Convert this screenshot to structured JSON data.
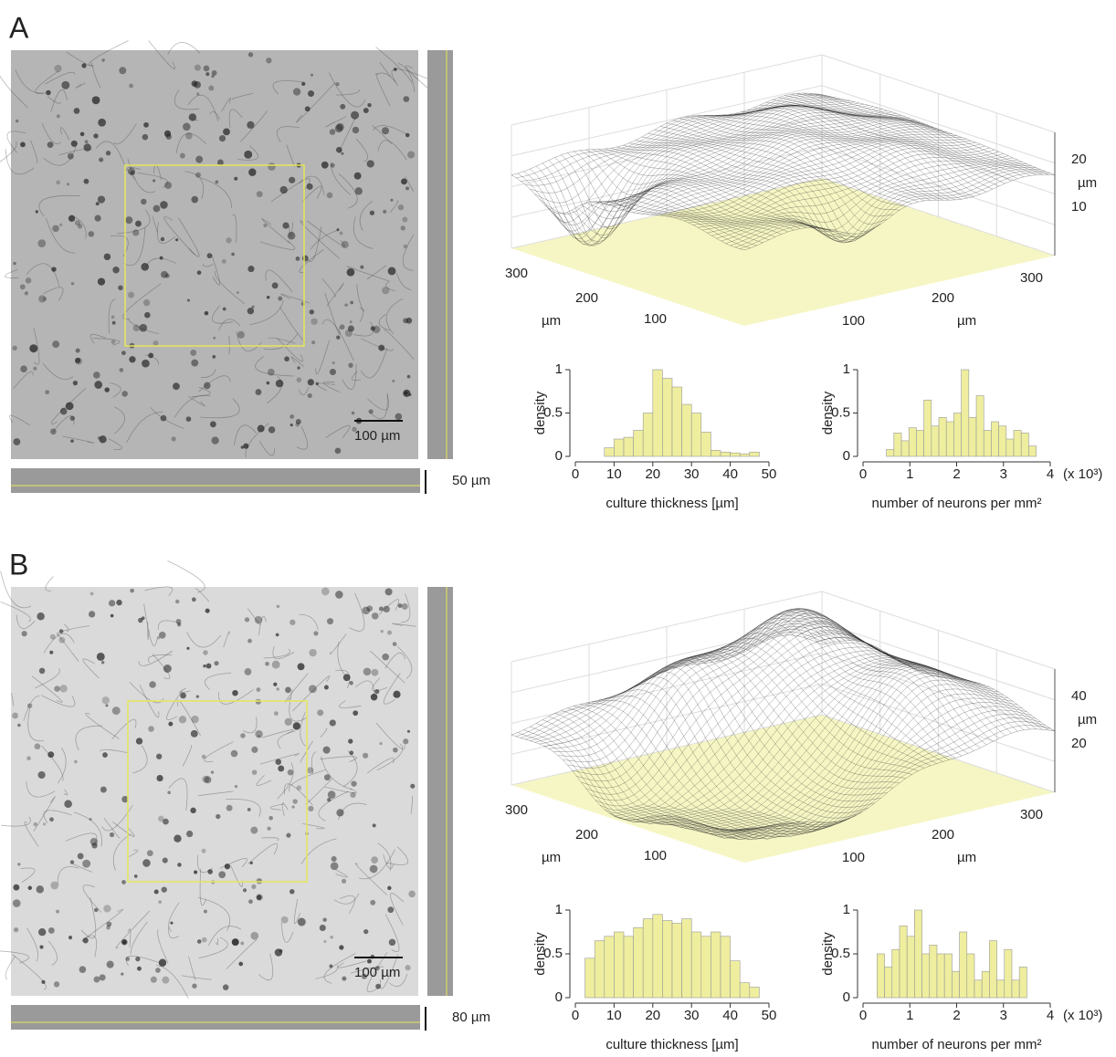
{
  "panels": [
    {
      "label": "A",
      "scale_bar": "100 µm",
      "z_scale_bar": "50 µm",
      "surface": {
        "left_ticks": [
          300,
          200,
          100
        ],
        "left_label": "µm",
        "right_ticks": [
          300,
          200,
          100
        ],
        "right_label": "µm",
        "z_ticks": [
          20,
          10
        ],
        "z_label": "µm"
      }
    },
    {
      "label": "B",
      "scale_bar": "100 µm",
      "z_scale_bar": "80 µm",
      "surface": {
        "left_ticks": [
          300,
          200,
          100
        ],
        "left_label": "µm",
        "right_ticks": [
          300,
          200,
          100
        ],
        "right_label": "µm",
        "z_ticks": [
          40,
          20
        ],
        "z_label": "µm"
      }
    }
  ],
  "chart_data": [
    {
      "type": "histogram",
      "xlabel": "culture thickness [µm]",
      "ylabel": "density",
      "color": "#eeee9e",
      "bins": [
        7.5,
        10,
        12.5,
        15,
        17.5,
        20,
        22.5,
        25,
        27.5,
        30,
        32.5,
        35,
        37.5,
        40,
        42.5,
        45,
        47.5
      ],
      "values": [
        0.1,
        0.2,
        0.22,
        0.3,
        0.5,
        1.0,
        0.9,
        0.8,
        0.6,
        0.5,
        0.28,
        0.07,
        0.05,
        0.04,
        0.03,
        0.05
      ],
      "xlim": [
        0,
        50
      ],
      "xticks": [
        0,
        10,
        20,
        30,
        40,
        50
      ],
      "ylim": [
        0,
        1
      ],
      "yticks": [
        0,
        0.5,
        1
      ]
    },
    {
      "type": "histogram",
      "xlabel": "number of neurons per mm²",
      "ylabel": "density",
      "x_unit": "(x 10³)",
      "color": "#eeee9e",
      "bins": [
        0.5,
        0.66,
        0.82,
        0.98,
        1.14,
        1.3,
        1.46,
        1.62,
        1.78,
        1.94,
        2.1,
        2.26,
        2.42,
        2.58,
        2.74,
        2.9,
        3.06,
        3.22,
        3.38,
        3.54,
        3.7
      ],
      "values": [
        0.08,
        0.27,
        0.18,
        0.33,
        0.3,
        0.65,
        0.35,
        0.45,
        0.4,
        0.5,
        1.0,
        0.45,
        0.7,
        0.3,
        0.4,
        0.35,
        0.2,
        0.3,
        0.27,
        0.12
      ],
      "xlim": [
        0,
        4
      ],
      "xticks": [
        0,
        1,
        2,
        3,
        4
      ],
      "ylim": [
        0,
        1
      ],
      "yticks": [
        0,
        0.5,
        1
      ]
    },
    {
      "type": "histogram",
      "xlabel": "culture thickness [µm]",
      "ylabel": "density",
      "color": "#eeee9e",
      "bins": [
        2.5,
        5,
        7.5,
        10,
        12.5,
        15,
        17.5,
        20,
        22.5,
        25,
        27.5,
        30,
        32.5,
        35,
        37.5,
        40,
        42.5,
        45,
        47.5
      ],
      "values": [
        0.45,
        0.65,
        0.7,
        0.75,
        0.7,
        0.8,
        0.9,
        0.95,
        0.88,
        0.85,
        0.9,
        0.75,
        0.7,
        0.75,
        0.7,
        0.42,
        0.17,
        0.12
      ],
      "xlim": [
        0,
        50
      ],
      "xticks": [
        0,
        10,
        20,
        30,
        40,
        50
      ],
      "ylim": [
        0,
        1
      ],
      "yticks": [
        0,
        0.5,
        1
      ]
    },
    {
      "type": "histogram",
      "xlabel": "number of neurons per mm²",
      "ylabel": "density",
      "x_unit": "(x 10³)",
      "color": "#eeee9e",
      "bins": [
        0.3,
        0.46,
        0.62,
        0.78,
        0.94,
        1.1,
        1.26,
        1.42,
        1.58,
        1.74,
        1.9,
        2.06,
        2.22,
        2.38,
        2.54,
        2.7,
        2.86,
        3.02,
        3.18,
        3.34,
        3.5
      ],
      "values": [
        0.5,
        0.35,
        0.55,
        0.82,
        0.7,
        1.0,
        0.5,
        0.6,
        0.5,
        0.5,
        0.3,
        0.75,
        0.5,
        0.2,
        0.3,
        0.65,
        0.2,
        0.55,
        0.2,
        0.35
      ],
      "xlim": [
        0,
        4
      ],
      "xticks": [
        0,
        1,
        2,
        3,
        4
      ],
      "ylim": [
        0,
        1
      ],
      "yticks": [
        0,
        0.5,
        1
      ]
    }
  ]
}
